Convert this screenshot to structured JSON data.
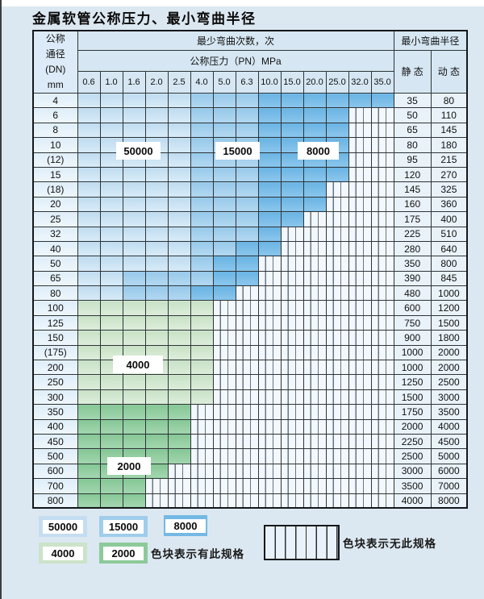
{
  "title": "金属软管公称压力、最小弯曲半径",
  "header": {
    "dn_lines": [
      "公称",
      "通径",
      "(DN)",
      "mm"
    ],
    "bend_cycles": "最少弯曲次数，次",
    "pressure": "公称压力（PN）MPa",
    "pressures": [
      "0.6",
      "1.0",
      "1.6",
      "2.0",
      "2.5",
      "4.0",
      "5.0",
      "6.3",
      "10.0",
      "15.0",
      "20.0",
      "25.0",
      "32.0",
      "35.0"
    ],
    "radius": "最小弯曲半径",
    "static": "静 态",
    "dynamic": "动 态"
  },
  "colors": {
    "cycle_50000": "#c5ddf0",
    "cycle_15000": "#9fcdeb",
    "cycle_8000": "#74b9e5",
    "cycle_4000": "#cbe3c9",
    "cycle_2000": "#8cca9a",
    "no_spec_bg": "#f2f8fd",
    "grid_line": "#2e3438",
    "page_bg": "#dce8f1"
  },
  "table": {
    "rows": [
      {
        "dn": "4",
        "runs": [
          [
            "50000",
            5
          ],
          [
            "15000",
            3
          ],
          [
            "8000",
            6
          ]
        ],
        "static": "35",
        "dynamic": "80"
      },
      {
        "dn": "6",
        "runs": [
          [
            "50000",
            5
          ],
          [
            "15000",
            3
          ],
          [
            "8000",
            4
          ],
          [
            "none",
            2
          ]
        ],
        "static": "50",
        "dynamic": "110"
      },
      {
        "dn": "8",
        "runs": [
          [
            "50000",
            5
          ],
          [
            "15000",
            3
          ],
          [
            "8000",
            4
          ],
          [
            "none",
            2
          ]
        ],
        "static": "65",
        "dynamic": "145"
      },
      {
        "dn": "10",
        "runs": [
          [
            "50000",
            5
          ],
          [
            "15000",
            3
          ],
          [
            "8000",
            4
          ],
          [
            "none",
            2
          ]
        ],
        "static": "80",
        "dynamic": "180"
      },
      {
        "dn": "(12)",
        "runs": [
          [
            "50000",
            5
          ],
          [
            "15000",
            3
          ],
          [
            "8000",
            4
          ],
          [
            "none",
            2
          ]
        ],
        "static": "95",
        "dynamic": "215"
      },
      {
        "dn": "15",
        "runs": [
          [
            "50000",
            5
          ],
          [
            "15000",
            3
          ],
          [
            "8000",
            4
          ],
          [
            "none",
            2
          ]
        ],
        "static": "120",
        "dynamic": "270"
      },
      {
        "dn": "(18)",
        "runs": [
          [
            "50000",
            5
          ],
          [
            "15000",
            3
          ],
          [
            "8000",
            3
          ],
          [
            "none",
            3
          ]
        ],
        "static": "145",
        "dynamic": "325"
      },
      {
        "dn": "20",
        "runs": [
          [
            "50000",
            5
          ],
          [
            "15000",
            3
          ],
          [
            "8000",
            3
          ],
          [
            "none",
            3
          ]
        ],
        "static": "160",
        "dynamic": "360"
      },
      {
        "dn": "25",
        "runs": [
          [
            "50000",
            5
          ],
          [
            "15000",
            3
          ],
          [
            "8000",
            2
          ],
          [
            "none",
            4
          ]
        ],
        "static": "175",
        "dynamic": "400"
      },
      {
        "dn": "32",
        "runs": [
          [
            "50000",
            5
          ],
          [
            "15000",
            3
          ],
          [
            "8000",
            1
          ],
          [
            "none",
            5
          ]
        ],
        "static": "225",
        "dynamic": "510"
      },
      {
        "dn": "40",
        "runs": [
          [
            "50000",
            5
          ],
          [
            "15000",
            2
          ],
          [
            "8000",
            2
          ],
          [
            "none",
            5
          ]
        ],
        "static": "280",
        "dynamic": "640"
      },
      {
        "dn": "50",
        "runs": [
          [
            "50000",
            5
          ],
          [
            "15000",
            1
          ],
          [
            "8000",
            2
          ],
          [
            "none",
            6
          ]
        ],
        "static": "350",
        "dynamic": "800"
      },
      {
        "dn": "65",
        "runs": [
          [
            "50000",
            2
          ],
          [
            "15000",
            4
          ],
          [
            "8000",
            2
          ],
          [
            "none",
            6
          ]
        ],
        "static": "390",
        "dynamic": "845"
      },
      {
        "dn": "80",
        "runs": [
          [
            "50000",
            2
          ],
          [
            "15000",
            3
          ],
          [
            "8000",
            2
          ],
          [
            "none",
            7
          ]
        ],
        "static": "480",
        "dynamic": "1000"
      },
      {
        "dn": "100",
        "runs": [
          [
            "4000",
            6
          ],
          [
            "none",
            8
          ]
        ],
        "static": "600",
        "dynamic": "1200"
      },
      {
        "dn": "125",
        "runs": [
          [
            "4000",
            6
          ],
          [
            "none",
            8
          ]
        ],
        "static": "750",
        "dynamic": "1500"
      },
      {
        "dn": "150",
        "runs": [
          [
            "4000",
            6
          ],
          [
            "none",
            8
          ]
        ],
        "static": "900",
        "dynamic": "1800"
      },
      {
        "dn": "(175)",
        "runs": [
          [
            "4000",
            6
          ],
          [
            "none",
            8
          ]
        ],
        "static": "1000",
        "dynamic": "2000"
      },
      {
        "dn": "200",
        "runs": [
          [
            "4000",
            6
          ],
          [
            "none",
            8
          ]
        ],
        "static": "1000",
        "dynamic": "2000"
      },
      {
        "dn": "250",
        "runs": [
          [
            "4000",
            6
          ],
          [
            "none",
            8
          ]
        ],
        "static": "1250",
        "dynamic": "2500"
      },
      {
        "dn": "300",
        "runs": [
          [
            "4000",
            6
          ],
          [
            "none",
            8
          ]
        ],
        "static": "1500",
        "dynamic": "3000"
      },
      {
        "dn": "350",
        "runs": [
          [
            "2000",
            5
          ],
          [
            "none",
            9
          ]
        ],
        "static": "1750",
        "dynamic": "3500"
      },
      {
        "dn": "400",
        "runs": [
          [
            "2000",
            5
          ],
          [
            "none",
            9
          ]
        ],
        "static": "2000",
        "dynamic": "4000"
      },
      {
        "dn": "450",
        "runs": [
          [
            "2000",
            5
          ],
          [
            "none",
            9
          ]
        ],
        "static": "2250",
        "dynamic": "4500"
      },
      {
        "dn": "500",
        "runs": [
          [
            "2000",
            5
          ],
          [
            "none",
            9
          ]
        ],
        "static": "2500",
        "dynamic": "5000"
      },
      {
        "dn": "600",
        "runs": [
          [
            "2000",
            4
          ],
          [
            "none",
            10
          ]
        ],
        "static": "3000",
        "dynamic": "6000"
      },
      {
        "dn": "700",
        "runs": [
          [
            "2000",
            3
          ],
          [
            "none",
            11
          ]
        ],
        "static": "3500",
        "dynamic": "7000"
      },
      {
        "dn": "800",
        "runs": [
          [
            "2000",
            3
          ],
          [
            "none",
            11
          ]
        ],
        "static": "4000",
        "dynamic": "8000"
      }
    ]
  },
  "overlays": [
    {
      "text": "50000"
    },
    {
      "text": "15000"
    },
    {
      "text": "8000"
    },
    {
      "text": "4000"
    },
    {
      "text": "2000"
    }
  ],
  "legend": {
    "swatches": [
      {
        "label": "50000"
      },
      {
        "label": "15000"
      },
      {
        "label": "8000"
      },
      {
        "label": "4000"
      },
      {
        "label": "2000"
      }
    ],
    "has_spec_text": "色块表示有此规格",
    "no_spec_text": "色块表示无此规格"
  }
}
